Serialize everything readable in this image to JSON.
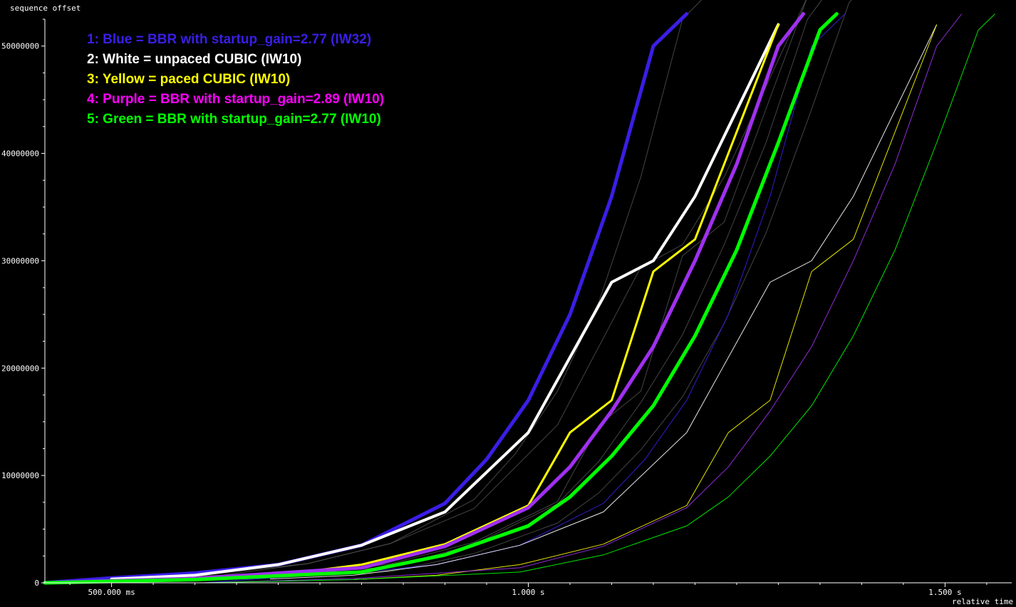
{
  "chart_data": {
    "type": "line",
    "xlabel": "relative time",
    "ylabel": "sequence offset",
    "xlim": [
      0.42,
      1.58
    ],
    "ylim": [
      0,
      52500000
    ],
    "x_ticks": [
      {
        "value": 0.5,
        "label": "500.000 ms"
      },
      {
        "value": 1.0,
        "label": "1.000  s"
      },
      {
        "value": 1.5,
        "label": "1.500  s"
      }
    ],
    "y_ticks": [
      {
        "value": 0,
        "label": "0"
      },
      {
        "value": 10000000,
        "label": "10000000"
      },
      {
        "value": 20000000,
        "label": "20000000"
      },
      {
        "value": 30000000,
        "label": "30000000"
      },
      {
        "value": 40000000,
        "label": "40000000"
      },
      {
        "value": 50000000,
        "label": "50000000"
      }
    ],
    "grid": false,
    "legend_position": "top-left",
    "series": [
      {
        "name": "1: Blue = BBR with startup_gain=2.77 (IW32)",
        "color": "#3a1ee6",
        "x": [
          0.42,
          0.5,
          0.6,
          0.7,
          0.8,
          0.9,
          0.95,
          1.0,
          1.05,
          1.1,
          1.15,
          1.19
        ],
        "y": [
          0,
          450000,
          900000,
          1700000,
          3500000,
          7400000,
          11500000,
          17000000,
          25000000,
          36000000,
          50000000,
          53000000
        ]
      },
      {
        "name": "2: White = unpaced CUBIC (IW10)",
        "color": "#ffffff",
        "x": [
          0.5,
          0.6,
          0.7,
          0.8,
          0.9,
          1.0,
          1.1,
          1.15,
          1.2,
          1.3
        ],
        "y": [
          350000,
          700000,
          1700000,
          3500000,
          6600000,
          14000000,
          28000000,
          30000000,
          36000000,
          52000000
        ]
      },
      {
        "name": "3: Yellow = paced CUBIC (IW10)",
        "color": "#ffff00",
        "x": [
          0.6,
          0.7,
          0.8,
          0.9,
          1.0,
          1.05,
          1.1,
          1.15,
          1.2,
          1.3
        ],
        "y": [
          300000,
          700000,
          1700000,
          3600000,
          7200000,
          14000000,
          17000000,
          29000000,
          32000000,
          52000000
        ]
      },
      {
        "name": "4: Purple = BBR with startup_gain=2.89 (IW10)",
        "color": "#ff00ff",
        "x": [
          0.42,
          0.6,
          0.8,
          0.9,
          1.0,
          1.05,
          1.1,
          1.15,
          1.2,
          1.25,
          1.3,
          1.33
        ],
        "y": [
          0,
          400000,
          1400000,
          3400000,
          7000000,
          10800000,
          16000000,
          22000000,
          30000000,
          39000000,
          50000000,
          53000000
        ]
      },
      {
        "name": "5: Green = BBR with startup_gain=2.77 (IW10)",
        "color": "#00ff00",
        "x": [
          0.42,
          0.6,
          0.8,
          0.9,
          1.0,
          1.05,
          1.1,
          1.15,
          1.2,
          1.25,
          1.3,
          1.35,
          1.37
        ],
        "y": [
          0,
          300000,
          1000000,
          2600000,
          5300000,
          8000000,
          11800000,
          16500000,
          23000000,
          31000000,
          41000000,
          51500000,
          53000000
        ]
      }
    ]
  }
}
